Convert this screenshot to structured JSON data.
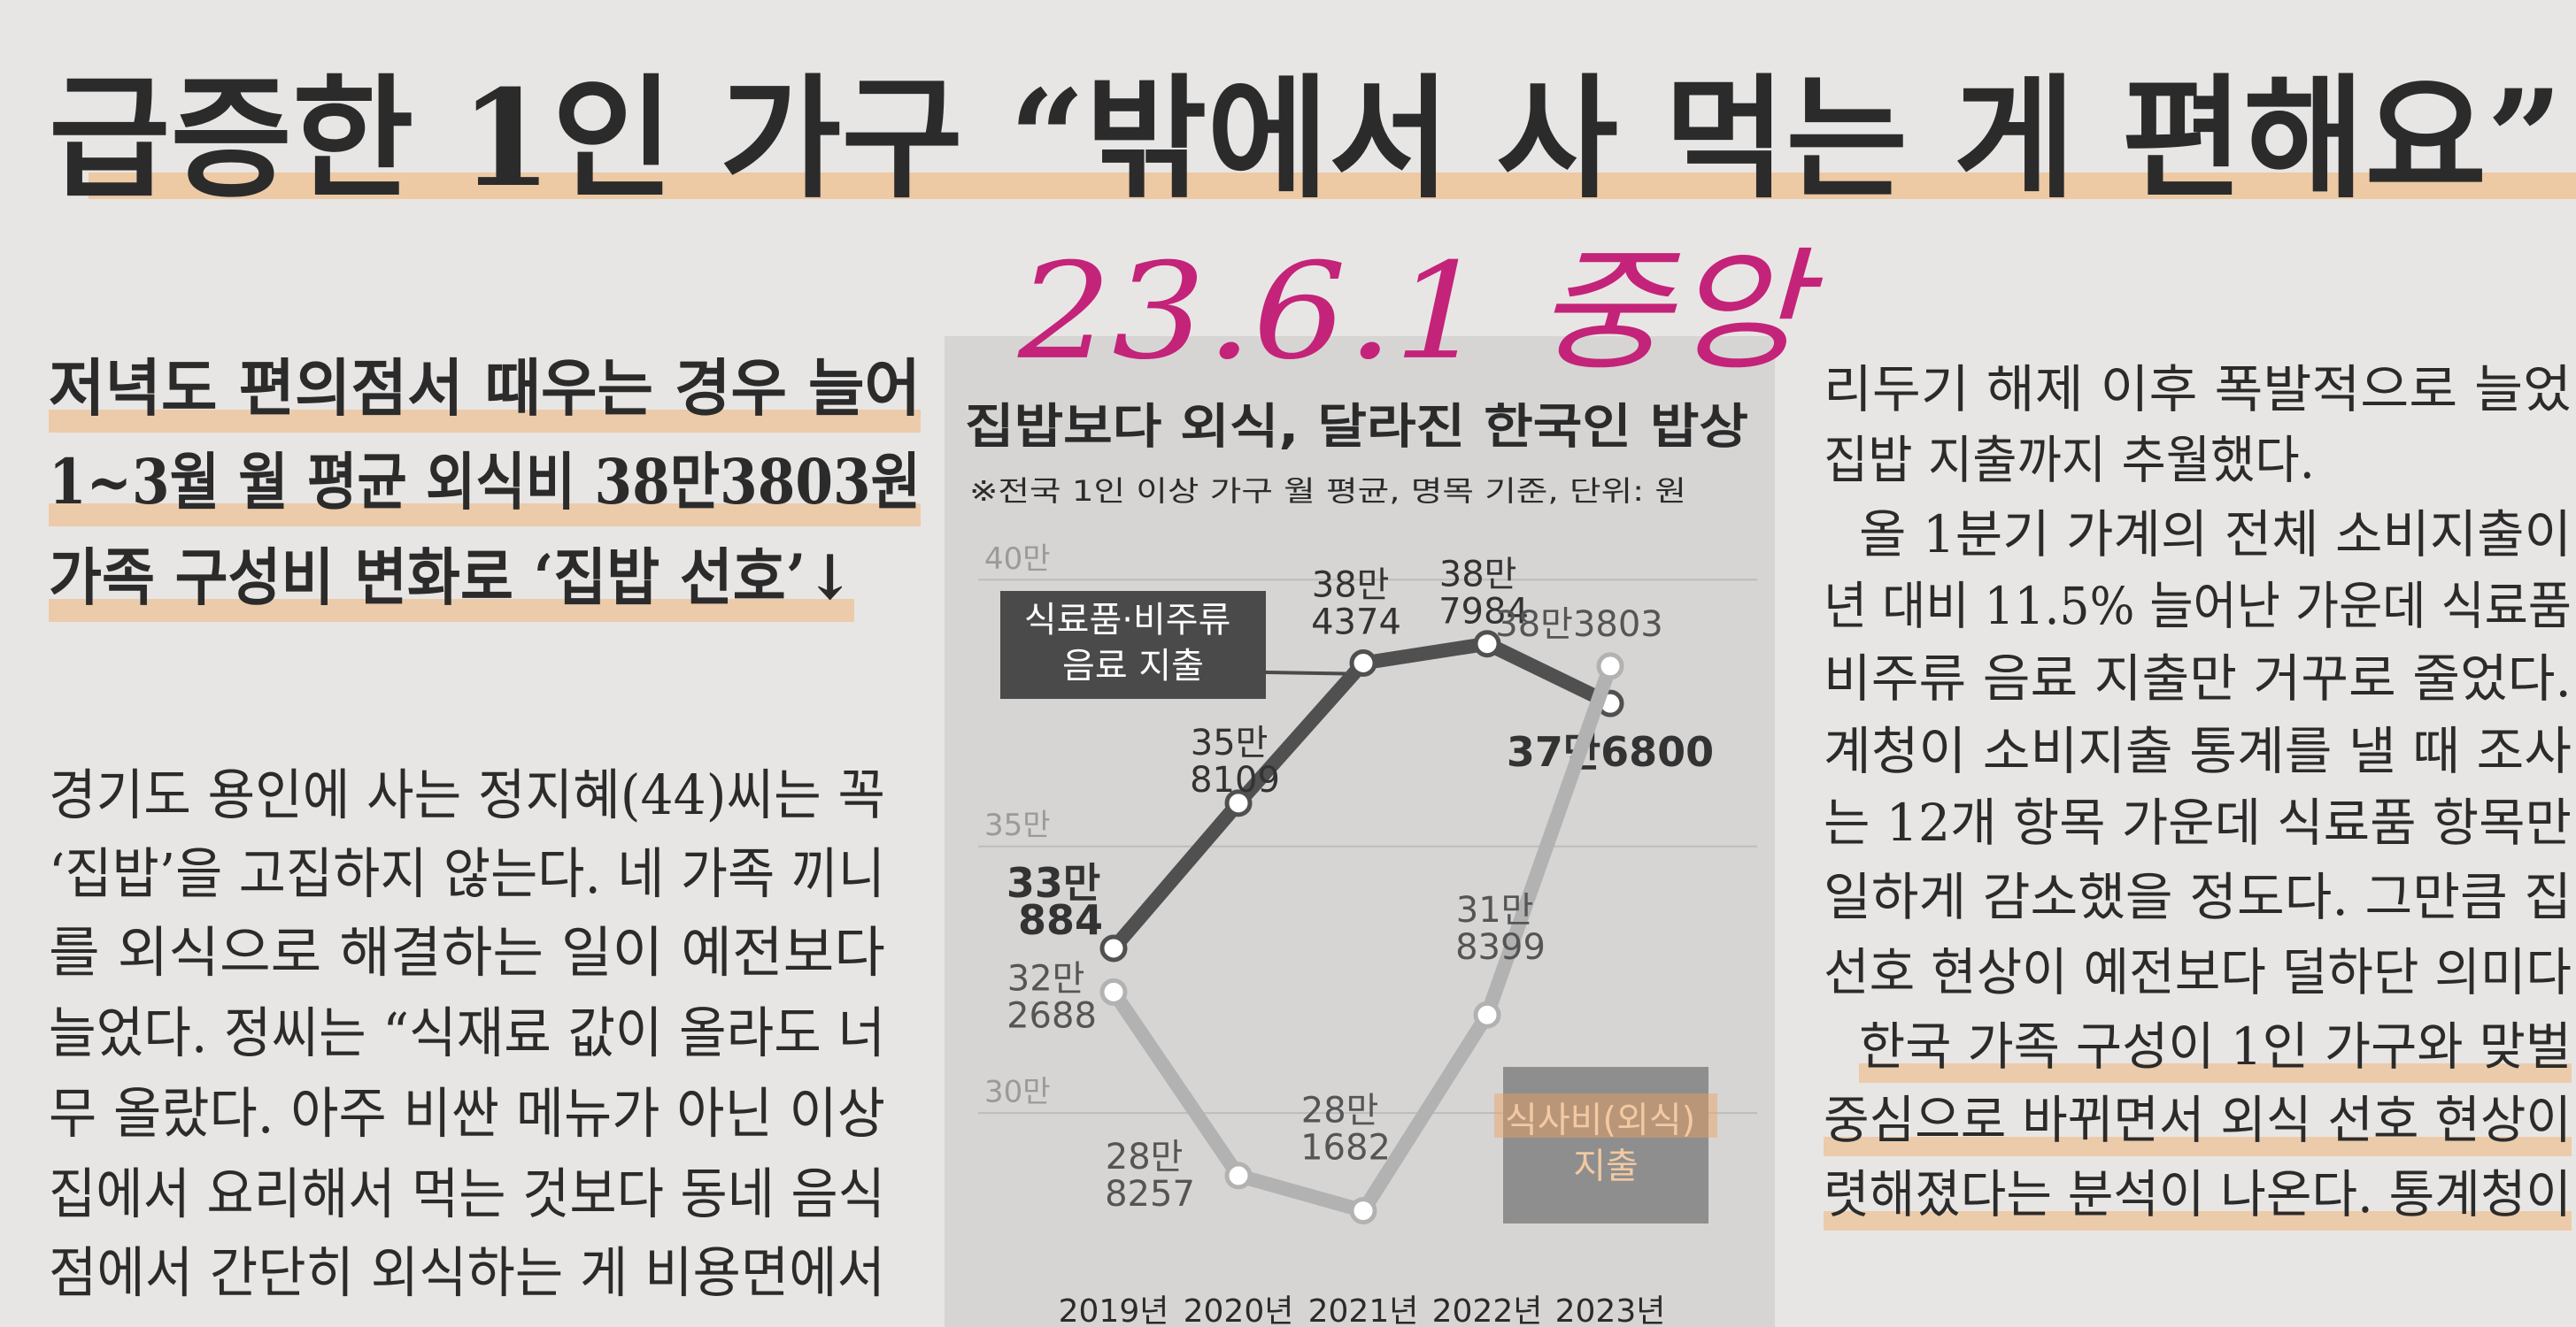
{
  "headline": "급증한 1인 가구 “밖에서 사 먹는 게 편해요”",
  "handwritten_note": "23.6.1 중앙",
  "subheadlines": [
    "저녁도 편의점서 때우는 경우 늘어",
    "1~3월 월 평균 외식비 38만3803원",
    "가족 구성비 변화로 ‘집밥 선호’↓"
  ],
  "body_left": [
    "경기도 용인에 사는 정지혜(44)씨는 꼭",
    "‘집밥’을 고집하지 않는다. 네 가족 끼니",
    "를 외식으로 해결하는 일이 예전보다",
    "늘었다. 정씨는 “식재료 값이 올라도 너",
    "무 올랐다. 아주 비싼 메뉴가 아닌 이상",
    "집에서 요리해서 먹는 것보다 동네 음식",
    "점에서 간단히 외식하는 게 비용면에서"
  ],
  "body_right": [
    "리두기 해제 이후 폭발적으로 늘었",
    "집밥 지출까지 추월했다.",
    "올 1분기 가계의 전체 소비지출이",
    "년 대비 11.5% 늘어난 가운데 식료품",
    "비주류 음료 지출만 거꾸로 줄었다.",
    "계청이 소비지출 통계를 낼 때 조사",
    "는 12개 항목 가운데 식료품 항목만",
    "일하게 감소했을 정도다. 그만큼 집",
    "선호 현상이 예전보다 덜하단 의미다",
    "한국 가족 구성이 1인 가구와 맞벌",
    "중심으로 바뀌면서 외식 선호 현상이",
    "렷해졌다는 분석이 나온다. 통계청이"
  ],
  "chart_data": {
    "type": "line",
    "title": "집밥보다 외식, 달라진 한국인 밥상",
    "subtitle": "※전국 1인 이상 가구 월 평균, 명목 기준, 단위: 원",
    "categories": [
      "2019년",
      "2020년",
      "2021년",
      "2022년",
      "2023년"
    ],
    "series": [
      {
        "name": "식료품·비주류 음료 지출",
        "color": "#505050",
        "values": [
          330884,
          358109,
          384374,
          387984,
          376800
        ],
        "value_labels": [
          "33만 884",
          "35만 8109",
          "38만 4374",
          "38만 7984",
          "37만6800"
        ]
      },
      {
        "name": "식사비(외식) 지출",
        "color": "#b2b2b2",
        "values": [
          322688,
          288257,
          281682,
          318399,
          383803
        ],
        "value_labels": [
          "32만 2688",
          "28만 8257",
          "28만 1682",
          "31만 8399",
          "38만3803"
        ]
      }
    ],
    "ylim": [
      270000,
      410000
    ],
    "yticks": [
      {
        "value": 300000,
        "label": "30만"
      },
      {
        "value": 350000,
        "label": "35만"
      },
      {
        "value": 400000,
        "label": "40만"
      }
    ],
    "grid": true
  }
}
